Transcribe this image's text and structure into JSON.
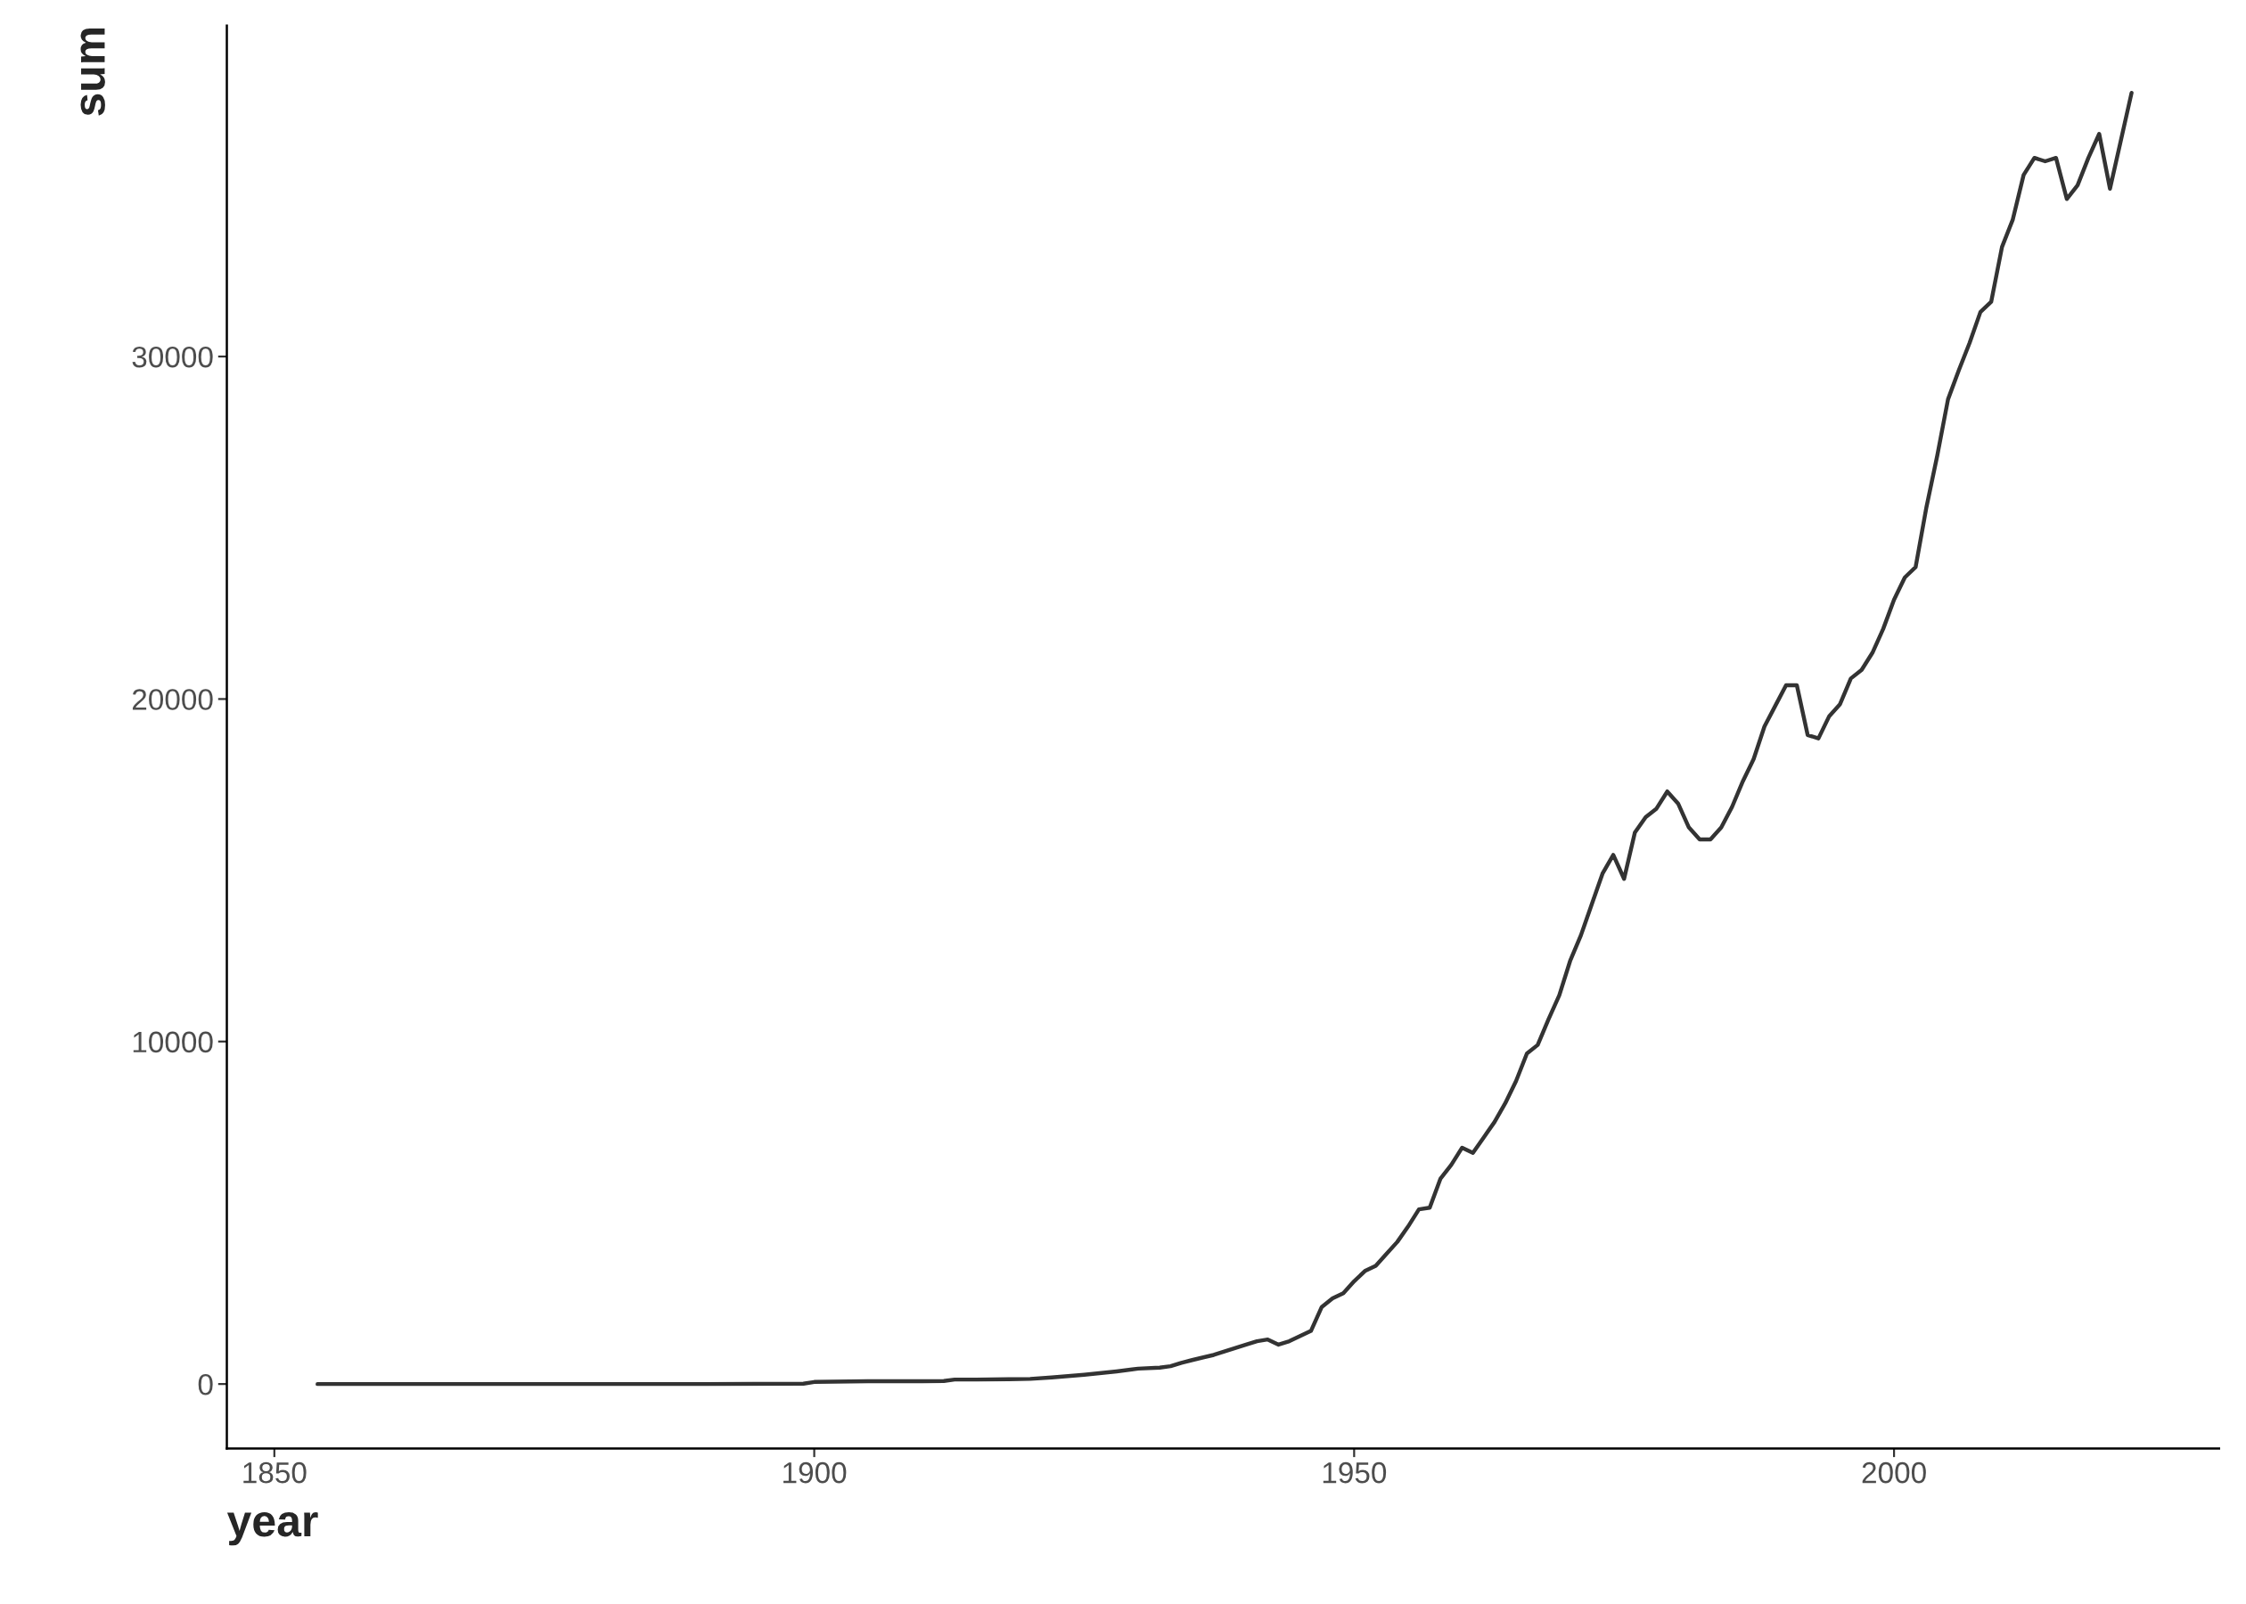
{
  "chart_data": {
    "type": "line",
    "xlabel": "year",
    "ylabel": "sum",
    "x": [
      1854,
      1870,
      1880,
      1890,
      1899,
      1900,
      1905,
      1910,
      1912,
      1913,
      1915,
      1918,
      1920,
      1922,
      1925,
      1928,
      1930,
      1932,
      1933,
      1934,
      1935,
      1937,
      1940,
      1941,
      1942,
      1943,
      1944,
      1945,
      1946,
      1947,
      1948,
      1949,
      1950,
      1951,
      1952,
      1953,
      1954,
      1955,
      1956,
      1957,
      1958,
      1959,
      1960,
      1961,
      1962,
      1963,
      1964,
      1965,
      1966,
      1967,
      1968,
      1969,
      1970,
      1971,
      1972,
      1973,
      1974,
      1975,
      1976,
      1977,
      1978,
      1979,
      1980,
      1981,
      1982,
      1983,
      1984,
      1985,
      1986,
      1987,
      1988,
      1989,
      1990,
      1991,
      1992,
      1993,
      1994,
      1995,
      1996,
      1997,
      1998,
      1999,
      2000,
      2001,
      2002,
      2003,
      2004,
      2005,
      2006,
      2007,
      2008,
      2009,
      2010,
      2011,
      2012,
      2013,
      2014,
      2015,
      2016,
      2017,
      2018,
      2019,
      2020,
      2021,
      2022
    ],
    "series": [
      {
        "color": "#333333",
        "values": [
          0,
          0,
          0,
          0,
          10,
          60,
          80,
          80,
          90,
          130,
          130,
          140,
          150,
          190,
          270,
          370,
          450,
          480,
          520,
          620,
          700,
          850,
          1150,
          1250,
          1300,
          1150,
          1250,
          1400,
          1550,
          2250,
          2500,
          2650,
          3000,
          3300,
          3450,
          3800,
          4150,
          4600,
          5100,
          5150,
          6000,
          6400,
          6900,
          6750,
          7200,
          7650,
          8200,
          8850,
          9650,
          9900,
          10650,
          11350,
          12350,
          13100,
          14000,
          14900,
          15450,
          14750,
          16100,
          16550,
          16800,
          17300,
          16950,
          16250,
          15900,
          15900,
          16250,
          16850,
          17600,
          18250,
          19200,
          19800,
          20400,
          20400,
          18950,
          18850,
          19500,
          19850,
          20600,
          20850,
          21350,
          22050,
          22900,
          23550,
          23850,
          25600,
          27100,
          28750,
          29600,
          30400,
          31300,
          31600,
          33200,
          34000,
          35300,
          35800,
          35700,
          35800,
          34600,
          35000,
          35800,
          36500,
          34900,
          36300,
          37700
        ]
      }
    ],
    "xlim": [
      1845.6,
      2030.1
    ],
    "xticks": [
      1850,
      1900,
      1950,
      2000
    ],
    "ylim": [
      -1880,
      39660
    ],
    "yticks": [
      0,
      10000,
      20000,
      30000
    ],
    "marker": "none",
    "line_style": "solid"
  }
}
